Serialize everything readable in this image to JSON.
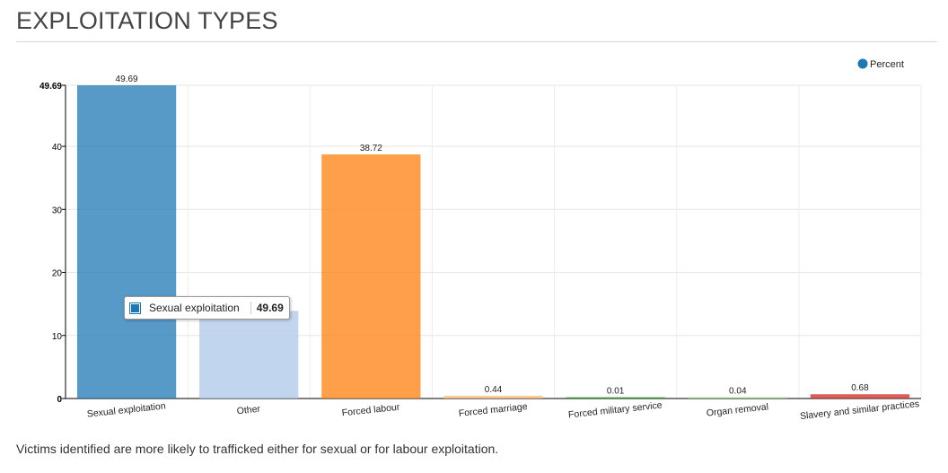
{
  "page": {
    "title": "EXPLOITATION TYPES",
    "footnote": "Victims identified are more likely to trafficked either for sexual or for labour exploitation."
  },
  "tooltip": {
    "label": "Sexual exploitation",
    "value": "49.69"
  },
  "chart_data": {
    "type": "bar",
    "title": "",
    "xlabel": "",
    "ylabel": "",
    "legend": {
      "label": "Percent",
      "position": "top-right",
      "color": "#1f77b4"
    },
    "categories": [
      "Sexual exploitation",
      "Other",
      "Forced labour",
      "Forced marriage",
      "Forced military service",
      "Organ removal",
      "Slavery and similar practices"
    ],
    "values": [
      49.69,
      13.9,
      38.72,
      0.44,
      0.01,
      0.04,
      0.68
    ],
    "value_labels": [
      "49.69",
      "",
      "38.72",
      "0.44",
      "0.01",
      "0.04",
      "0.68"
    ],
    "colors": [
      "#1f77b4",
      "#aec7e8",
      "#ff7f0e",
      "#ffbb78",
      "#2ca02c",
      "#98df8a",
      "#d62728"
    ],
    "y_ticks": [
      0,
      10,
      20,
      30,
      40
    ],
    "y_max_label": "49.69",
    "ylim": [
      0,
      49.69
    ],
    "grid": true
  }
}
